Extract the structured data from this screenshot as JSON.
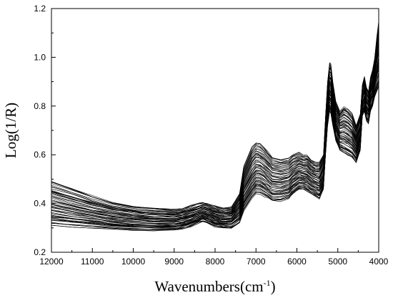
{
  "chart_data": {
    "type": "line",
    "title": "",
    "xlabel": "Wavenumbers(cm",
    "xlabel_superscript": "-1",
    "xlabel_suffix": ")",
    "ylabel": "Log(1/R)",
    "xlim": [
      12000,
      4000
    ],
    "ylim": [
      0.2,
      1.2
    ],
    "x_reversed": true,
    "grid": false,
    "legend": "none",
    "x_ticks": [
      "12000",
      "11000",
      "10000",
      "9000",
      "8000",
      "7000",
      "6000",
      "5000",
      "4000"
    ],
    "y_ticks": [
      "0.2",
      "0.4",
      "0.6",
      "0.8",
      "1.0",
      "1.2"
    ],
    "series_count": 60,
    "line_color": "#000000",
    "profile": {
      "wavenumbers": [
        12000,
        11500,
        11000,
        10500,
        10000,
        9500,
        9000,
        8800,
        8600,
        8400,
        8300,
        8200,
        8000,
        7800,
        7600,
        7400,
        7300,
        7100,
        7000,
        6900,
        6800,
        6700,
        6600,
        6400,
        6200,
        6100,
        5950,
        5850,
        5750,
        5650,
        5550,
        5450,
        5350,
        5300,
        5250,
        5200,
        5170,
        5120,
        5050,
        4950,
        4850,
        4750,
        4650,
        4550,
        4450,
        4400,
        4350,
        4300,
        4250,
        4200,
        4150,
        4100,
        4050,
        4000
      ],
      "mean": [
        0.38,
        0.37,
        0.355,
        0.345,
        0.34,
        0.335,
        0.33,
        0.335,
        0.345,
        0.36,
        0.365,
        0.36,
        0.345,
        0.34,
        0.345,
        0.38,
        0.45,
        0.54,
        0.57,
        0.565,
        0.55,
        0.53,
        0.51,
        0.5,
        0.505,
        0.55,
        0.56,
        0.555,
        0.55,
        0.53,
        0.52,
        0.51,
        0.55,
        0.7,
        0.82,
        0.88,
        0.87,
        0.8,
        0.73,
        0.69,
        0.7,
        0.69,
        0.68,
        0.64,
        0.7,
        0.82,
        0.84,
        0.8,
        0.78,
        0.84,
        0.86,
        0.9,
        0.95,
        0.99
      ],
      "low": [
        0.31,
        0.305,
        0.3,
        0.295,
        0.29,
        0.29,
        0.29,
        0.295,
        0.305,
        0.32,
        0.325,
        0.32,
        0.305,
        0.3,
        0.3,
        0.32,
        0.37,
        0.42,
        0.44,
        0.44,
        0.43,
        0.42,
        0.41,
        0.41,
        0.42,
        0.44,
        0.46,
        0.46,
        0.45,
        0.44,
        0.43,
        0.42,
        0.46,
        0.6,
        0.72,
        0.78,
        0.77,
        0.72,
        0.66,
        0.62,
        0.61,
        0.6,
        0.59,
        0.57,
        0.62,
        0.76,
        0.78,
        0.74,
        0.73,
        0.78,
        0.8,
        0.84,
        0.86,
        0.88
      ],
      "high": [
        0.49,
        0.46,
        0.43,
        0.405,
        0.39,
        0.38,
        0.375,
        0.38,
        0.39,
        0.4,
        0.405,
        0.4,
        0.39,
        0.38,
        0.385,
        0.44,
        0.55,
        0.63,
        0.65,
        0.645,
        0.63,
        0.61,
        0.59,
        0.58,
        0.585,
        0.6,
        0.61,
        0.6,
        0.6,
        0.58,
        0.57,
        0.57,
        0.6,
        0.76,
        0.9,
        0.98,
        0.975,
        0.9,
        0.82,
        0.78,
        0.8,
        0.79,
        0.77,
        0.72,
        0.77,
        0.89,
        0.92,
        0.88,
        0.86,
        0.92,
        0.95,
        1.0,
        1.08,
        1.15
      ]
    }
  }
}
